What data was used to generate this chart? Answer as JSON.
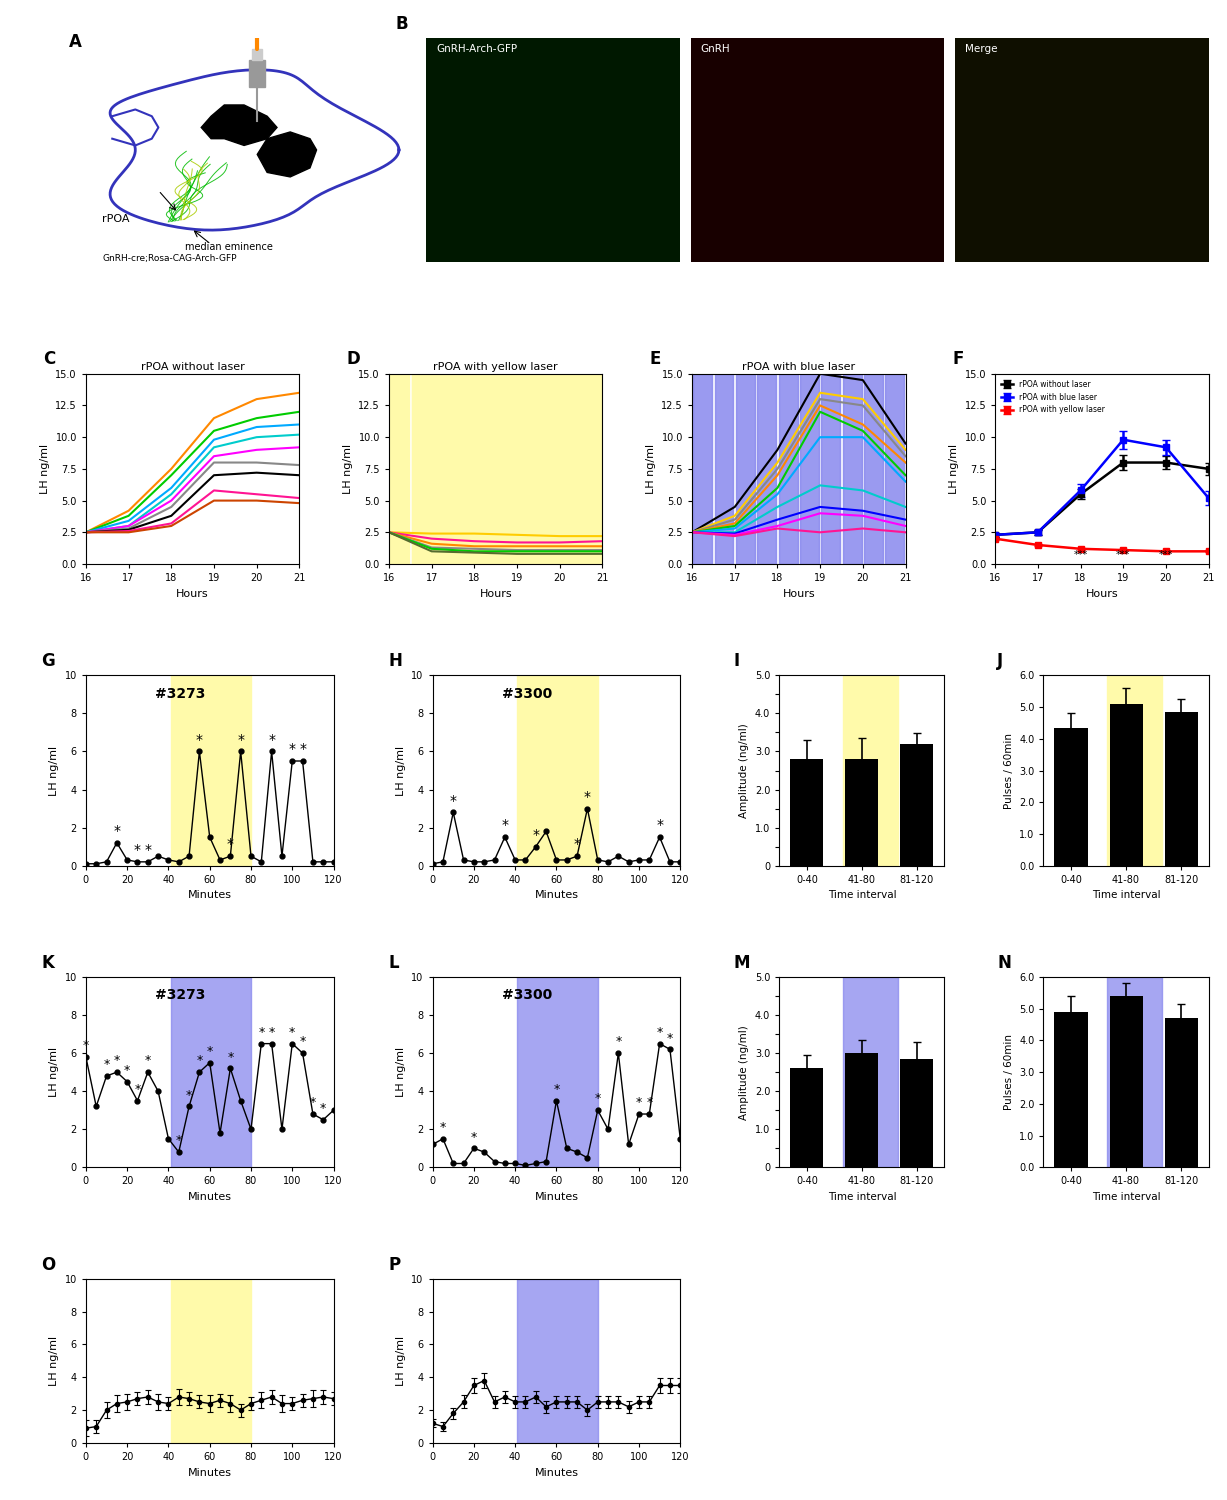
{
  "hours": [
    16,
    17,
    18,
    19,
    20,
    21
  ],
  "panel_C_lines": [
    {
      "color": "#ff8800",
      "y": [
        2.5,
        4.2,
        7.5,
        11.5,
        13.0,
        13.5
      ]
    },
    {
      "color": "#00cc00",
      "y": [
        2.5,
        3.8,
        7.0,
        10.5,
        11.5,
        12.0
      ]
    },
    {
      "color": "#00aaff",
      "y": [
        2.5,
        3.4,
        6.0,
        9.8,
        10.8,
        11.0
      ]
    },
    {
      "color": "#00cccc",
      "y": [
        2.5,
        3.0,
        5.5,
        9.2,
        10.0,
        10.2
      ]
    },
    {
      "color": "#ff00ff",
      "y": [
        2.5,
        3.0,
        5.0,
        8.5,
        9.0,
        9.2
      ]
    },
    {
      "color": "#888888",
      "y": [
        2.5,
        2.8,
        4.5,
        8.0,
        8.0,
        7.8
      ]
    },
    {
      "color": "#000000",
      "y": [
        2.5,
        2.7,
        3.8,
        7.0,
        7.2,
        7.0
      ]
    },
    {
      "color": "#ff1493",
      "y": [
        2.5,
        2.6,
        3.2,
        5.8,
        5.5,
        5.2
      ]
    },
    {
      "color": "#cc4400",
      "y": [
        2.5,
        2.5,
        3.0,
        5.0,
        5.0,
        4.8
      ]
    }
  ],
  "panel_D_lines": [
    {
      "color": "#ffcc00",
      "y": [
        2.5,
        2.4,
        2.4,
        2.3,
        2.2,
        2.2
      ]
    },
    {
      "color": "#ff1493",
      "y": [
        2.5,
        2.0,
        1.8,
        1.7,
        1.7,
        1.8
      ]
    },
    {
      "color": "#ff8800",
      "y": [
        2.5,
        1.6,
        1.4,
        1.4,
        1.4,
        1.4
      ]
    },
    {
      "color": "#888888",
      "y": [
        2.5,
        1.3,
        1.2,
        1.1,
        1.1,
        1.1
      ]
    },
    {
      "color": "#00cc00",
      "y": [
        2.5,
        1.2,
        1.0,
        1.0,
        1.0,
        1.0
      ]
    },
    {
      "color": "#556b2f",
      "y": [
        2.5,
        1.0,
        0.9,
        0.8,
        0.8,
        0.8
      ]
    }
  ],
  "panel_E_lines": [
    {
      "color": "#000000",
      "y": [
        2.5,
        4.5,
        9.0,
        15.0,
        14.5,
        9.5
      ]
    },
    {
      "color": "#ffcc00",
      "y": [
        2.5,
        3.8,
        8.0,
        13.5,
        13.0,
        9.0
      ]
    },
    {
      "color": "#888888",
      "y": [
        2.5,
        3.5,
        7.5,
        13.0,
        12.5,
        8.5
      ]
    },
    {
      "color": "#ff8800",
      "y": [
        2.5,
        3.2,
        7.0,
        12.5,
        11.0,
        8.0
      ]
    },
    {
      "color": "#00cc00",
      "y": [
        2.5,
        3.0,
        6.0,
        12.0,
        10.5,
        7.0
      ]
    },
    {
      "color": "#00aaff",
      "y": [
        2.5,
        2.8,
        5.5,
        10.0,
        10.0,
        6.5
      ]
    },
    {
      "color": "#00cccc",
      "y": [
        2.5,
        2.5,
        4.5,
        6.2,
        5.8,
        4.5
      ]
    },
    {
      "color": "#0000ff",
      "y": [
        2.5,
        2.4,
        3.5,
        4.5,
        4.2,
        3.5
      ]
    },
    {
      "color": "#ff00ff",
      "y": [
        2.5,
        2.3,
        3.0,
        4.0,
        3.8,
        3.0
      ]
    },
    {
      "color": "#ff1493",
      "y": [
        2.5,
        2.2,
        2.8,
        2.5,
        2.8,
        2.5
      ]
    }
  ],
  "panel_F_no_laser": {
    "y": [
      2.3,
      2.5,
      5.5,
      8.0,
      8.0,
      7.5
    ],
    "err": [
      0.15,
      0.2,
      0.4,
      0.6,
      0.5,
      0.45
    ]
  },
  "panel_F_blue_laser": {
    "y": [
      2.3,
      2.5,
      5.8,
      9.8,
      9.2,
      5.2
    ],
    "err": [
      0.15,
      0.2,
      0.5,
      0.7,
      0.6,
      0.55
    ]
  },
  "panel_F_yellow_laser": {
    "y": [
      2.0,
      1.5,
      1.2,
      1.1,
      1.0,
      1.0
    ],
    "err": [
      0.1,
      0.1,
      0.08,
      0.08,
      0.08,
      0.08
    ]
  },
  "panel_F_colors": [
    "#000000",
    "#0000ff",
    "#ff0000"
  ],
  "panel_F_legend": [
    "rPOA without laser",
    "rPOA with blue laser",
    "rPOA with yellow laser"
  ],
  "yellow_bg_color": "#fffaaa",
  "blue_bg_color": "#8888ee",
  "panel_G_x": [
    0,
    5,
    10,
    15,
    20,
    25,
    30,
    35,
    40,
    45,
    50,
    55,
    60,
    65,
    70,
    75,
    80,
    85,
    90,
    95,
    100,
    105,
    110,
    115,
    120
  ],
  "panel_G_y": [
    0.1,
    0.1,
    0.2,
    1.2,
    0.3,
    0.2,
    0.2,
    0.5,
    0.3,
    0.2,
    0.5,
    6.0,
    1.5,
    0.3,
    0.5,
    6.0,
    0.5,
    0.2,
    6.0,
    0.5,
    5.5,
    5.5,
    0.2,
    0.2,
    0.2
  ],
  "panel_G_star_idx": [
    3,
    5,
    6,
    11,
    14,
    15,
    18,
    20,
    21
  ],
  "panel_H_x": [
    0,
    5,
    10,
    15,
    20,
    25,
    30,
    35,
    40,
    45,
    50,
    55,
    60,
    65,
    70,
    75,
    80,
    85,
    90,
    95,
    100,
    105,
    110,
    115,
    120
  ],
  "panel_H_y": [
    0.1,
    0.2,
    2.8,
    0.3,
    0.2,
    0.2,
    0.3,
    1.5,
    0.3,
    0.3,
    1.0,
    1.8,
    0.3,
    0.3,
    0.5,
    3.0,
    0.3,
    0.2,
    0.5,
    0.2,
    0.3,
    0.3,
    1.5,
    0.2,
    0.2
  ],
  "panel_H_star_idx": [
    2,
    7,
    10,
    14,
    15,
    22
  ],
  "panel_I_bars": [
    2.8,
    2.8,
    3.2
  ],
  "panel_I_errs": [
    0.5,
    0.55,
    0.28
  ],
  "panel_I_cats": [
    "0-40",
    "41-80",
    "81-120"
  ],
  "panel_J_bars": [
    4.35,
    5.1,
    4.85
  ],
  "panel_J_errs": [
    0.45,
    0.5,
    0.42
  ],
  "panel_J_cats": [
    "0-40",
    "41-80",
    "81-120"
  ],
  "panel_K_x": [
    0,
    5,
    10,
    15,
    20,
    25,
    30,
    35,
    40,
    45,
    50,
    55,
    60,
    65,
    70,
    75,
    80,
    85,
    90,
    95,
    100,
    105,
    110,
    115,
    120
  ],
  "panel_K_y": [
    5.8,
    3.2,
    4.8,
    5.0,
    4.5,
    3.5,
    5.0,
    4.0,
    1.5,
    0.8,
    3.2,
    5.0,
    5.5,
    1.8,
    5.2,
    3.5,
    2.0,
    6.5,
    6.5,
    2.0,
    6.5,
    6.0,
    2.8,
    2.5,
    3.0
  ],
  "panel_K_star_idx": [
    0,
    2,
    3,
    4,
    5,
    6,
    9,
    10,
    11,
    12,
    14,
    17,
    18,
    20,
    21,
    22,
    23
  ],
  "panel_L_x": [
    0,
    5,
    10,
    15,
    20,
    25,
    30,
    35,
    40,
    45,
    50,
    55,
    60,
    65,
    70,
    75,
    80,
    85,
    90,
    95,
    100,
    105,
    110,
    115,
    120
  ],
  "panel_L_y": [
    1.2,
    1.5,
    0.2,
    0.2,
    1.0,
    0.8,
    0.3,
    0.2,
    0.2,
    0.1,
    0.2,
    0.3,
    3.5,
    1.0,
    0.8,
    0.5,
    3.0,
    2.0,
    6.0,
    1.2,
    2.8,
    2.8,
    6.5,
    6.2,
    1.5
  ],
  "panel_L_star_idx": [
    1,
    4,
    12,
    16,
    18,
    20,
    21,
    22,
    23
  ],
  "panel_M_bars": [
    2.6,
    3.0,
    2.85
  ],
  "panel_M_errs": [
    0.35,
    0.35,
    0.45
  ],
  "panel_M_cats": [
    "0-40",
    "41-80",
    "81-120"
  ],
  "panel_N_bars": [
    4.9,
    5.4,
    4.7
  ],
  "panel_N_errs": [
    0.5,
    0.4,
    0.45
  ],
  "panel_N_cats": [
    "0-40",
    "41-80",
    "81-120"
  ],
  "panel_O_x": [
    0,
    5,
    10,
    15,
    20,
    25,
    30,
    35,
    40,
    45,
    50,
    55,
    60,
    65,
    70,
    75,
    80,
    85,
    90,
    95,
    100,
    105,
    110,
    115,
    120
  ],
  "panel_O_y": [
    0.9,
    1.0,
    2.0,
    2.4,
    2.5,
    2.7,
    2.8,
    2.5,
    2.4,
    2.8,
    2.7,
    2.5,
    2.4,
    2.6,
    2.4,
    2.0,
    2.4,
    2.6,
    2.8,
    2.4,
    2.4,
    2.6,
    2.7,
    2.8,
    2.7
  ],
  "panel_O_err": [
    0.5,
    0.4,
    0.5,
    0.5,
    0.5,
    0.4,
    0.4,
    0.5,
    0.4,
    0.5,
    0.4,
    0.4,
    0.5,
    0.4,
    0.5,
    0.4,
    0.4,
    0.5,
    0.4,
    0.5,
    0.4,
    0.4,
    0.5,
    0.4,
    0.4
  ],
  "panel_P_x": [
    0,
    5,
    10,
    15,
    20,
    25,
    30,
    35,
    40,
    45,
    50,
    55,
    60,
    65,
    70,
    75,
    80,
    85,
    90,
    95,
    100,
    105,
    110,
    115,
    120
  ],
  "panel_P_y": [
    1.2,
    1.0,
    1.8,
    2.5,
    3.5,
    3.8,
    2.5,
    2.8,
    2.5,
    2.5,
    2.8,
    2.2,
    2.5,
    2.5,
    2.5,
    2.0,
    2.5,
    2.5,
    2.5,
    2.2,
    2.5,
    2.5,
    3.5,
    3.5,
    3.5
  ],
  "panel_P_err": [
    0.25,
    0.3,
    0.35,
    0.4,
    0.45,
    0.45,
    0.35,
    0.35,
    0.35,
    0.35,
    0.35,
    0.35,
    0.35,
    0.35,
    0.35,
    0.35,
    0.35,
    0.35,
    0.35,
    0.35,
    0.35,
    0.35,
    0.45,
    0.45,
    0.45
  ]
}
